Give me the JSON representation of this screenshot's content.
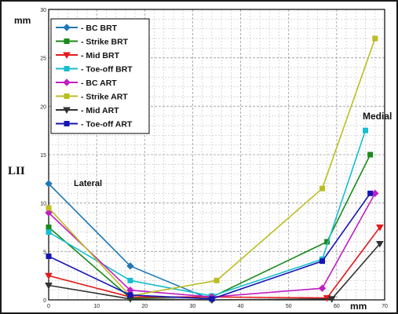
{
  "labels": {
    "y_unit": "mm",
    "x_unit": "mm",
    "side": "LII",
    "lateral": "Lateral",
    "medial": "Medial"
  },
  "chart_data": {
    "type": "line",
    "xlim": [
      0,
      70
    ],
    "ylim": [
      0,
      30
    ],
    "x_ticks": [
      0,
      10,
      20,
      30,
      40,
      50,
      60,
      70
    ],
    "y_ticks": [
      0,
      5,
      10,
      15,
      20,
      25,
      30
    ],
    "grid": true,
    "legend_position": "top-left",
    "series": [
      {
        "name": "- BC BRT",
        "color": "#1f78b4",
        "marker": "diamond",
        "x": [
          0,
          17,
          34
        ],
        "y": [
          12,
          3.5,
          0
        ]
      },
      {
        "name": "- Strike BRT",
        "color": "#1a8a1a",
        "marker": "square",
        "x": [
          0,
          17,
          34,
          58,
          67
        ],
        "y": [
          7.5,
          0.2,
          0.3,
          6,
          15
        ]
      },
      {
        "name": "- Mid BRT",
        "color": "#e31a1c",
        "marker": "triangle-down",
        "x": [
          0,
          17,
          34,
          58,
          69
        ],
        "y": [
          2.5,
          0.3,
          0.3,
          0.2,
          7.5
        ]
      },
      {
        "name": "- Toe-off BRT",
        "color": "#17becf",
        "marker": "square",
        "x": [
          0,
          17,
          34,
          57,
          66
        ],
        "y": [
          7,
          2,
          0.4,
          4.2,
          17.5
        ]
      },
      {
        "name": "- BC ART",
        "color": "#c020c0",
        "marker": "diamond",
        "x": [
          0,
          17,
          34,
          57,
          68
        ],
        "y": [
          9,
          1,
          0.3,
          1.2,
          11
        ]
      },
      {
        "name": "- Strike ART",
        "color": "#bcbd22",
        "marker": "square",
        "x": [
          0,
          17,
          35,
          57,
          68
        ],
        "y": [
          9.5,
          0.4,
          2,
          11.5,
          27
        ]
      },
      {
        "name": "- Mid ART",
        "color": "#333333",
        "marker": "triangle-down",
        "x": [
          0,
          17,
          34,
          59,
          69
        ],
        "y": [
          1.5,
          0.1,
          0,
          0.1,
          5.8
        ]
      },
      {
        "name": "- Toe-off ART",
        "color": "#1515b5",
        "marker": "square",
        "x": [
          0,
          17,
          34,
          57,
          67
        ],
        "y": [
          4.5,
          0.5,
          0.1,
          4,
          11
        ]
      }
    ]
  }
}
